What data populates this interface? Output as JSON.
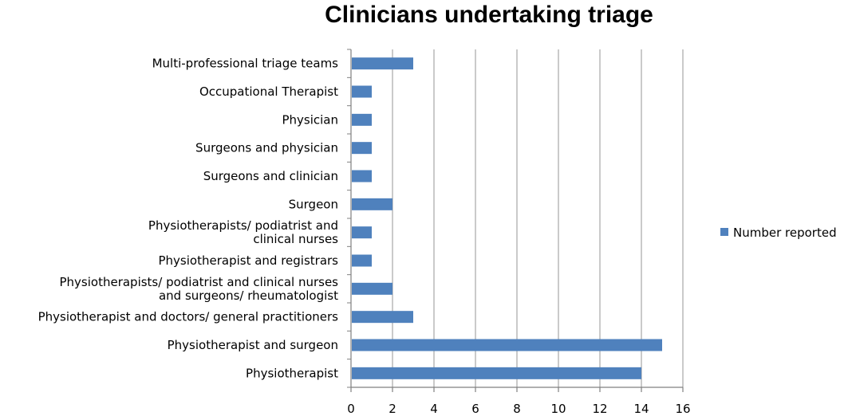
{
  "colors": {
    "bar": "#4f81bd",
    "grid": "#a6a6a6",
    "axis": "#808080"
  },
  "chart_data": {
    "type": "bar",
    "orientation": "horizontal",
    "title": "Clinicians undertaking triage",
    "xlabel": "",
    "ylabel": "",
    "xlim": [
      0,
      16
    ],
    "x_ticks": [
      0,
      2,
      4,
      6,
      8,
      10,
      12,
      14,
      16
    ],
    "grid": true,
    "legend_position": "right",
    "categories": [
      [
        "Multi-professional triage teams"
      ],
      [
        "Occupational Therapist"
      ],
      [
        "Physician"
      ],
      [
        "Surgeons and physician"
      ],
      [
        "Surgeons and clinician"
      ],
      [
        "Surgeon"
      ],
      [
        "Physiotherapists/ podiatrist and",
        "clinical nurses"
      ],
      [
        "Physiotherapist and registrars"
      ],
      [
        "Physiotherapists/ podiatrist and clinical nurses",
        "and surgeons/ rheumatologist"
      ],
      [
        "Physiotherapist and doctors/ general practitioners"
      ],
      [
        "Physiotherapist and surgeon"
      ],
      [
        "Physiotherapist"
      ]
    ],
    "series": [
      {
        "name": "Number reported",
        "values": [
          3,
          1,
          1,
          1,
          1,
          2,
          1,
          1,
          2,
          3,
          15,
          14
        ]
      }
    ]
  }
}
